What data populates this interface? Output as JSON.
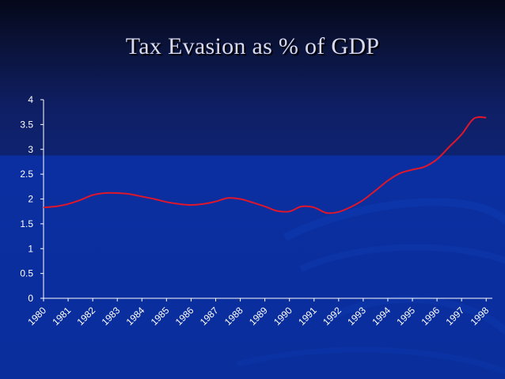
{
  "slide": {
    "title": "Tax Evasion as % of GDP",
    "colors": {
      "background_top": "#05081a",
      "background_band": "#0a2e9c",
      "line": "#e0162b",
      "text": "#ffffff"
    }
  },
  "chart_data": {
    "type": "line",
    "title": "Tax Evasion as % of GDP",
    "xlabel": "",
    "ylabel": "",
    "x": [
      "1980",
      "1981",
      "1982",
      "1983",
      "1984",
      "1985",
      "1986",
      "1987",
      "1988",
      "1989",
      "1990",
      "1991",
      "1992",
      "1993",
      "1994",
      "1995",
      "1996",
      "1997",
      "1998"
    ],
    "y_ticks": [
      "0",
      "0.5",
      "1",
      "1.5",
      "2",
      "2.5",
      "3",
      "3.5",
      "4"
    ],
    "ylim": [
      0,
      4
    ],
    "grid": false,
    "legend": "none",
    "series": [
      {
        "x": [
          1980.0,
          1980.5,
          1981.0,
          1981.5,
          1982.0,
          1982.5,
          1983.0,
          1983.5,
          1984.0,
          1984.5,
          1985.0,
          1985.5,
          1986.0,
          1986.5,
          1987.0,
          1987.5,
          1988.0,
          1988.5,
          1989.0,
          1989.5,
          1990.0,
          1990.5,
          1991.0,
          1991.5,
          1992.0,
          1992.5,
          1993.0,
          1993.5,
          1994.0,
          1994.5,
          1995.0,
          1995.5,
          1996.0,
          1996.5,
          1997.0,
          1997.5,
          1998.0
        ],
        "values": [
          1.83,
          1.85,
          1.9,
          1.98,
          2.08,
          2.12,
          2.12,
          2.1,
          2.05,
          2.0,
          1.94,
          1.9,
          1.88,
          1.9,
          1.95,
          2.02,
          2.0,
          1.93,
          1.85,
          1.76,
          1.75,
          1.85,
          1.83,
          1.72,
          1.74,
          1.84,
          1.98,
          2.17,
          2.37,
          2.52,
          2.59,
          2.65,
          2.8,
          3.05,
          3.3,
          3.62,
          3.64
        ]
      }
    ]
  }
}
